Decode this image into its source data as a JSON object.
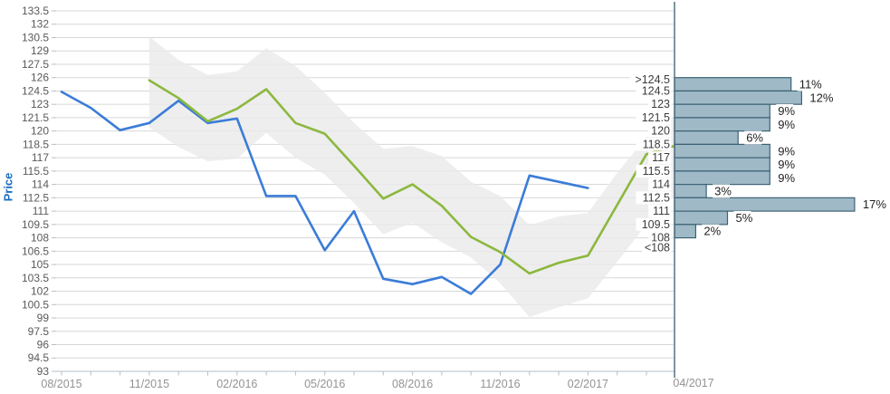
{
  "chart_data": {
    "type": "line",
    "title": "",
    "ylabel": "Price",
    "ylim": [
      93,
      133.5
    ],
    "y_tick_step": 1.5,
    "y_ticks": [
      "133.5",
      "132",
      "130.5",
      "129",
      "127.5",
      "126",
      "124.5",
      "123",
      "121.5",
      "120",
      "118.5",
      "117",
      "115.5",
      "114",
      "112.5",
      "111",
      "109.5",
      "108",
      "106.5",
      "105",
      "103.5",
      "102",
      "100.5",
      "99",
      "97.5",
      "96",
      "94.5",
      "93"
    ],
    "x_tick_count": 21,
    "x_labels": [
      {
        "i": 0,
        "label": "08/2015"
      },
      {
        "i": 3,
        "label": "11/2015"
      },
      {
        "i": 6,
        "label": "02/2016"
      },
      {
        "i": 9,
        "label": "05/2016"
      },
      {
        "i": 12,
        "label": "08/2016"
      },
      {
        "i": 15,
        "label": "11/2016"
      },
      {
        "i": 18,
        "label": "02/2017"
      }
    ],
    "grid": true,
    "legend": "none",
    "series": [
      {
        "name": "price-history",
        "color": "#3b7cd8",
        "points": [
          [
            0,
            124.4
          ],
          [
            1,
            122.6
          ],
          [
            2,
            120.1
          ],
          [
            3,
            120.9
          ],
          [
            4,
            123.4
          ],
          [
            5,
            120.9
          ],
          [
            6,
            121.4
          ],
          [
            7,
            112.7
          ],
          [
            8,
            112.7
          ],
          [
            9,
            106.6
          ],
          [
            10,
            111.0
          ],
          [
            11,
            103.4
          ],
          [
            12,
            102.8
          ],
          [
            13,
            103.6
          ],
          [
            14,
            101.7
          ],
          [
            15,
            105.0
          ],
          [
            16,
            115.0
          ],
          [
            17,
            114.3
          ],
          [
            18,
            113.6
          ]
        ]
      },
      {
        "name": "forecast-median",
        "color": "#8cb83f",
        "points": [
          [
            3,
            125.7
          ],
          [
            4,
            123.7
          ],
          [
            5,
            121.1
          ],
          [
            6,
            122.5
          ],
          [
            7,
            124.7
          ],
          [
            8,
            120.9
          ],
          [
            9,
            119.7
          ],
          [
            10,
            116.1
          ],
          [
            11,
            112.4
          ],
          [
            12,
            114.0
          ],
          [
            13,
            111.6
          ],
          [
            14,
            108.1
          ],
          [
            15,
            106.4
          ],
          [
            16,
            104.0
          ],
          [
            17,
            105.2
          ],
          [
            18,
            106.0
          ],
          [
            20,
            117.4
          ],
          [
            20.93,
            118.3
          ]
        ]
      }
    ],
    "band": {
      "name": "confidence-band",
      "color": "#eaeaea",
      "points": [
        [
          3,
          130.6,
          120.4
        ],
        [
          4,
          128.0,
          118.2
        ],
        [
          5,
          126.3,
          116.6
        ],
        [
          6,
          126.7,
          116.9
        ],
        [
          7,
          129.3,
          119.8
        ],
        [
          8,
          127.3,
          117.0
        ],
        [
          9,
          124.3,
          115.1
        ],
        [
          10,
          120.9,
          111.9
        ],
        [
          11,
          118.0,
          108.4
        ],
        [
          12,
          118.3,
          109.7
        ],
        [
          13,
          117.2,
          107.5
        ],
        [
          14,
          114.3,
          105.8
        ],
        [
          15,
          112.7,
          102.9
        ],
        [
          16,
          109.4,
          99.1
        ],
        [
          17,
          110.4,
          100.2
        ],
        [
          18,
          110.8,
          101.2
        ],
        [
          19,
          115.3,
          105.3
        ],
        [
          20,
          119.3,
          109.5
        ],
        [
          20.93,
          121.5,
          112.6
        ]
      ]
    },
    "histogram": {
      "name": "forecast-distribution",
      "date_label": "04/2017",
      "bar_fill": "#9fb9c7",
      "bar_border": "#3c6275",
      "axis_color": "#48687a",
      "bins": [
        {
          "label": ">124.5",
          "top": 126,
          "pct": 11
        },
        {
          "label": "124.5",
          "top": 124.5,
          "pct": 12
        },
        {
          "label": "123",
          "top": 123,
          "pct": 9
        },
        {
          "label": "121.5",
          "top": 121.5,
          "pct": 9
        },
        {
          "label": "120",
          "top": 120,
          "pct": 6
        },
        {
          "label": "118.5",
          "top": 118.5,
          "pct": 9
        },
        {
          "label": "117",
          "top": 117,
          "pct": 9
        },
        {
          "label": "115.5",
          "top": 115.5,
          "pct": 9
        },
        {
          "label": "114",
          "top": 114,
          "pct": 3
        },
        {
          "label": "112.5",
          "top": 112.5,
          "pct": 17
        },
        {
          "label": "111",
          "top": 111,
          "pct": 5
        },
        {
          "label": "109.5",
          "top": 109.5,
          "pct": 2
        },
        {
          "label": "108",
          "top": 108,
          "pct": null
        },
        {
          "label": "<108",
          "top": 106.5,
          "pct": null
        }
      ]
    },
    "colors": {
      "gridline": "#d7d7d7",
      "axis": "#b6bfc7",
      "y_tick_label": "#595959",
      "x_tick_label": "#939393",
      "y_axis_title": "#1a6fc0",
      "bin_label": "#3c3c3c",
      "pct_label": "#1f1f1f"
    }
  }
}
